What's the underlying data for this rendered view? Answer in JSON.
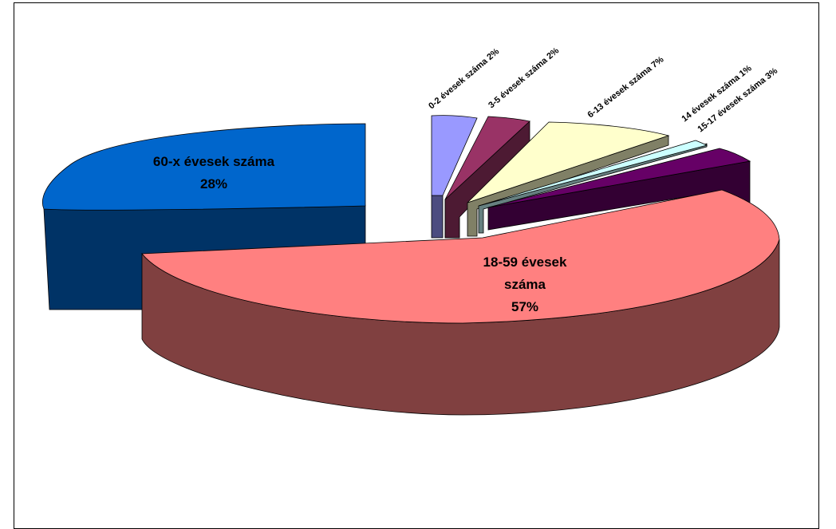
{
  "chart_data": {
    "type": "pie",
    "style": "3d-exploded",
    "slices": [
      {
        "label": "0-2 évesek száma",
        "pct_text": "2%",
        "value": 2,
        "top_color": "#9999FF",
        "side_color": "#4C4C80"
      },
      {
        "label": "3-5 évesek száma",
        "pct_text": "2%",
        "value": 2,
        "top_color": "#993366",
        "side_color": "#4D1A33"
      },
      {
        "label": "6-13 évesek száma",
        "pct_text": "7%",
        "value": 7,
        "top_color": "#FFFFCC",
        "side_color": "#808066"
      },
      {
        "label": "14 évesek száma",
        "pct_text": "1%",
        "value": 1,
        "top_color": "#CCFFFF",
        "side_color": "#668080"
      },
      {
        "label": "15-17 évesek száma",
        "pct_text": "3%",
        "value": 3,
        "top_color": "#660066",
        "side_color": "#330033"
      },
      {
        "label": "18-59 évesek száma",
        "pct_text": "57%",
        "value": 57,
        "top_color": "#FF8080",
        "side_color": "#804040"
      },
      {
        "label": "60-x évesek száma",
        "pct_text": "28%",
        "value": 28,
        "top_color": "#0066CC",
        "side_color": "#003366"
      }
    ]
  }
}
